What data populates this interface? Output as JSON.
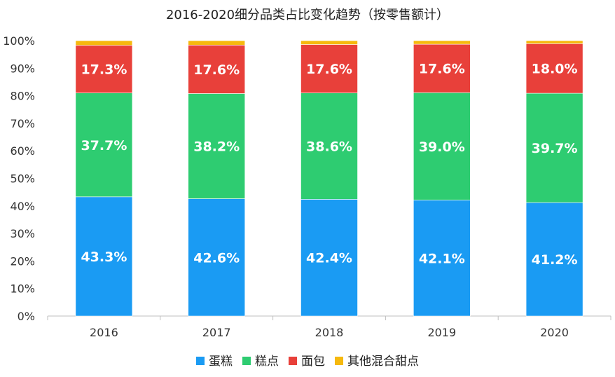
{
  "chart_data": {
    "type": "bar",
    "stacked": true,
    "title": "2016-2020细分品类占比变化趋势（按零售额计）",
    "categories": [
      "2016",
      "2017",
      "2018",
      "2019",
      "2020"
    ],
    "ylim": [
      0,
      100
    ],
    "yticks": [
      0,
      10,
      20,
      30,
      40,
      50,
      60,
      70,
      80,
      90,
      100
    ],
    "ytick_labels": [
      "0%",
      "10%",
      "20%",
      "30%",
      "40%",
      "50%",
      "60%",
      "70%",
      "80%",
      "90%",
      "100%"
    ],
    "grid": false,
    "legend_position": "bottom",
    "series": [
      {
        "name": "蛋糕",
        "color": "#1a9bf3",
        "values": [
          43.3,
          42.6,
          42.4,
          42.1,
          41.2
        ],
        "labels": [
          "43.3%",
          "42.6%",
          "42.4%",
          "42.1%",
          "41.2%"
        ]
      },
      {
        "name": "糕点",
        "color": "#2ecc71",
        "values": [
          37.7,
          38.2,
          38.6,
          39.0,
          39.7
        ],
        "labels": [
          "37.7%",
          "38.2%",
          "38.6%",
          "39.0%",
          "39.7%"
        ]
      },
      {
        "name": "面包",
        "color": "#e8403a",
        "values": [
          17.3,
          17.6,
          17.6,
          17.6,
          18.0
        ],
        "labels": [
          "17.3%",
          "17.6%",
          "17.6%",
          "17.6%",
          "18.0%"
        ]
      },
      {
        "name": "其他混合甜点",
        "color": "#f6b90e",
        "values": [
          1.7,
          1.6,
          1.4,
          1.3,
          1.1
        ],
        "labels": []
      }
    ]
  }
}
